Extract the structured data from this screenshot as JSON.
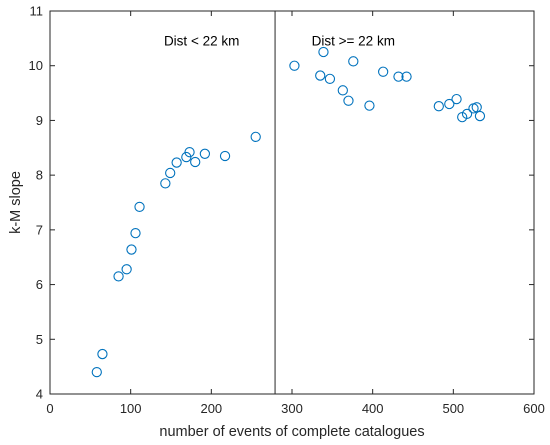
{
  "chart_data": {
    "type": "scatter",
    "title": "",
    "xlabel": "number of events of complete catalogues",
    "ylabel": "k-M slope",
    "xlim": [
      0,
      600
    ],
    "ylim": [
      4,
      11
    ],
    "xticks": [
      0,
      100,
      200,
      300,
      400,
      500,
      600
    ],
    "yticks": [
      4,
      5,
      6,
      7,
      8,
      9,
      10,
      11
    ],
    "xtick_labels": [
      "0",
      "100",
      "200",
      "300",
      "400",
      "500",
      "600"
    ],
    "ytick_labels": [
      "4",
      "5",
      "6",
      "7",
      "8",
      "9",
      "10",
      "11"
    ],
    "grid": false,
    "box": true,
    "marker": "open-circle",
    "marker_color": "#0072BD",
    "divider": {
      "x": 279,
      "color": "#262626"
    },
    "annotations": [
      {
        "text": "Dist < 22 km",
        "x": 188,
        "y": 10.45
      },
      {
        "text": "Dist >= 22 km",
        "x": 376,
        "y": 10.45
      }
    ],
    "points": [
      {
        "x": 58,
        "y": 4.4
      },
      {
        "x": 65,
        "y": 4.73
      },
      {
        "x": 85,
        "y": 6.15
      },
      {
        "x": 95,
        "y": 6.28
      },
      {
        "x": 101,
        "y": 6.64
      },
      {
        "x": 106,
        "y": 6.94
      },
      {
        "x": 111,
        "y": 7.42
      },
      {
        "x": 143,
        "y": 7.85
      },
      {
        "x": 149,
        "y": 8.04
      },
      {
        "x": 157,
        "y": 8.23
      },
      {
        "x": 169,
        "y": 8.33
      },
      {
        "x": 173,
        "y": 8.42
      },
      {
        "x": 180,
        "y": 8.24
      },
      {
        "x": 192,
        "y": 8.39
      },
      {
        "x": 217,
        "y": 8.35
      },
      {
        "x": 255,
        "y": 8.7
      },
      {
        "x": 303,
        "y": 10.0
      },
      {
        "x": 335,
        "y": 9.82
      },
      {
        "x": 339,
        "y": 10.25
      },
      {
        "x": 347,
        "y": 9.76
      },
      {
        "x": 363,
        "y": 9.55
      },
      {
        "x": 370,
        "y": 9.36
      },
      {
        "x": 376,
        "y": 10.08
      },
      {
        "x": 396,
        "y": 9.27
      },
      {
        "x": 413,
        "y": 9.89
      },
      {
        "x": 432,
        "y": 9.8
      },
      {
        "x": 442,
        "y": 9.8
      },
      {
        "x": 482,
        "y": 9.26
      },
      {
        "x": 495,
        "y": 9.3
      },
      {
        "x": 504,
        "y": 9.39
      },
      {
        "x": 511,
        "y": 9.06
      },
      {
        "x": 517,
        "y": 9.12
      },
      {
        "x": 525,
        "y": 9.22
      },
      {
        "x": 529,
        "y": 9.24
      },
      {
        "x": 533,
        "y": 9.08
      }
    ]
  }
}
